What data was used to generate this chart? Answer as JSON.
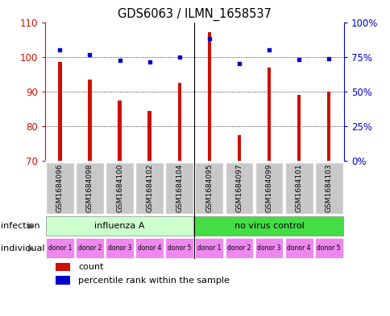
{
  "title": "GDS6063 / ILMN_1658537",
  "samples": [
    "GSM1684096",
    "GSM1684098",
    "GSM1684100",
    "GSM1684102",
    "GSM1684104",
    "GSM1684095",
    "GSM1684097",
    "GSM1684099",
    "GSM1684101",
    "GSM1684103"
  ],
  "counts": [
    98.5,
    93.5,
    87.5,
    84.5,
    92.5,
    107.0,
    77.5,
    97.0,
    89.0,
    90.0
  ],
  "percentile_ranks_left": [
    80.0,
    76.5,
    72.5,
    71.5,
    75.0,
    88.0,
    70.5,
    80.0,
    73.0,
    73.5
  ],
  "ylim_left": [
    70,
    110
  ],
  "ylim_right": [
    0,
    100
  ],
  "yticks_left": [
    70,
    80,
    90,
    100,
    110
  ],
  "yticks_right": [
    0,
    25,
    50,
    75,
    100
  ],
  "ytick_labels_right": [
    "0%",
    "25%",
    "50%",
    "75%",
    "100%"
  ],
  "bar_color": "#cc1100",
  "dot_color": "#0000cc",
  "infection_groups": [
    {
      "label": "influenza A",
      "start": 0,
      "end": 5,
      "color": "#ccffcc"
    },
    {
      "label": "no virus control",
      "start": 5,
      "end": 10,
      "color": "#44dd44"
    }
  ],
  "individual_labels": [
    "donor 1",
    "donor 2",
    "donor 3",
    "donor 4",
    "donor 5",
    "donor 1",
    "donor 2",
    "donor 3",
    "donor 4",
    "donor 5"
  ],
  "individual_color": "#ee88ee",
  "sample_bg_color": "#c8c8c8",
  "grid_color": "#000000",
  "legend_count_color": "#cc1100",
  "legend_pct_color": "#0000cc",
  "infection_row_label": "infection",
  "individual_row_label": "individual",
  "bar_width": 0.12
}
